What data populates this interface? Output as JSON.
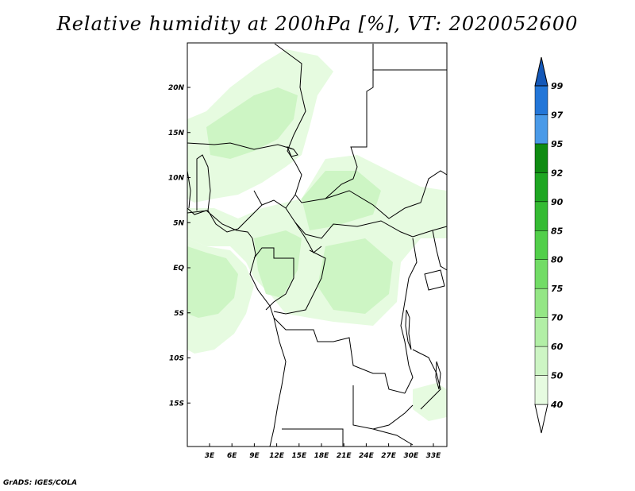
{
  "title": "Relative humidity at 200hPa [%], VT: 2020052600",
  "credit": "GrADS: IGES/COLA",
  "map": {
    "lat_ticks": [
      {
        "label": "20N",
        "lat": 20
      },
      {
        "label": "15N",
        "lat": 15
      },
      {
        "label": "10N",
        "lat": 10
      },
      {
        "label": "5N",
        "lat": 5
      },
      {
        "label": "EQ",
        "lat": 0
      },
      {
        "label": "5S",
        "lat": -5
      },
      {
        "label": "10S",
        "lat": -10
      },
      {
        "label": "15S",
        "lat": -15
      }
    ],
    "lon_ticks": [
      {
        "label": "3E",
        "lon": 3
      },
      {
        "label": "6E",
        "lon": 6
      },
      {
        "label": "9E",
        "lon": 9
      },
      {
        "label": "12E",
        "lon": 12
      },
      {
        "label": "15E",
        "lon": 15
      },
      {
        "label": "18E",
        "lon": 18
      },
      {
        "label": "21E",
        "lon": 21
      },
      {
        "label": "24E",
        "lon": 24
      },
      {
        "label": "27E",
        "lon": 27
      },
      {
        "label": "30E",
        "lon": 30
      },
      {
        "label": "33E",
        "lon": 33
      }
    ]
  },
  "colorbar": {
    "levels": [
      "40",
      "50",
      "60",
      "70",
      "75",
      "80",
      "85",
      "90",
      "92",
      "95",
      "97",
      "99"
    ],
    "colors": [
      "#ffffff",
      "#e6fbe0",
      "#cdf5c4",
      "#b2efa6",
      "#94e685",
      "#72dc66",
      "#52cf4a",
      "#35bb33",
      "#1ea622",
      "#0f8b12",
      "#4a9ae8",
      "#2376d8",
      "#1458b8"
    ]
  },
  "colors": {
    "land_border": "#000000",
    "humid_light": "#e6fbe0",
    "humid_mid": "#cdf5c4"
  }
}
